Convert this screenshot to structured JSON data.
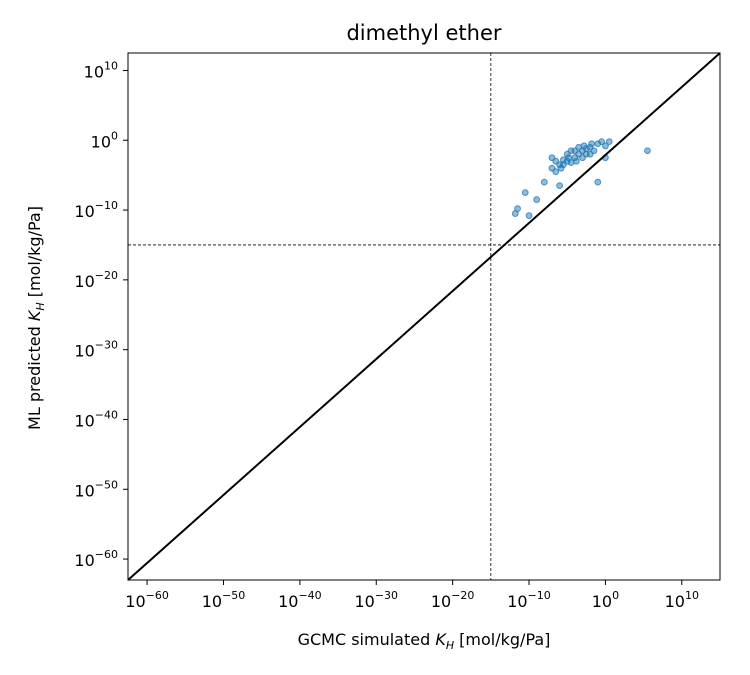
{
  "chart_data": {
    "type": "scatter",
    "title": "dimethyl ether",
    "xlabel": "GCMC simulated K_H [mol/kg/Pa]",
    "xlabel_parts": {
      "before": "GCMC simulated ",
      "symbol": "K",
      "sub": "H",
      "after": " [mol/kg/Pa]"
    },
    "ylabel": "ML predicted K_H [mol/kg/Pa]",
    "ylabel_parts": {
      "before": "ML predicted ",
      "symbol": "K",
      "sub": "H",
      "after": " [mol/kg/Pa]"
    },
    "x_scale": "log",
    "y_scale": "log",
    "xlim_exp": [
      -62.5,
      15
    ],
    "ylim_exp": [
      -63,
      12.5
    ],
    "xticks": [
      {
        "base": "10",
        "exp": "−60",
        "value_exp": -60
      },
      {
        "base": "10",
        "exp": "−50",
        "value_exp": -50
      },
      {
        "base": "10",
        "exp": "−40",
        "value_exp": -40
      },
      {
        "base": "10",
        "exp": "−30",
        "value_exp": -30
      },
      {
        "base": "10",
        "exp": "−20",
        "value_exp": -20
      },
      {
        "base": "10",
        "exp": "−10",
        "value_exp": -10
      },
      {
        "base": "10",
        "exp": "0",
        "value_exp": 0
      },
      {
        "base": "10",
        "exp": "10",
        "value_exp": 10
      }
    ],
    "yticks": [
      {
        "base": "10",
        "exp": "−60",
        "value_exp": -60
      },
      {
        "base": "10",
        "exp": "−50",
        "value_exp": -50
      },
      {
        "base": "10",
        "exp": "−40",
        "value_exp": -40
      },
      {
        "base": "10",
        "exp": "−30",
        "value_exp": -30
      },
      {
        "base": "10",
        "exp": "−20",
        "value_exp": -20
      },
      {
        "base": "10",
        "exp": "−10",
        "value_exp": -10
      },
      {
        "base": "10",
        "exp": "0",
        "value_exp": 0
      },
      {
        "base": "10",
        "exp": "10",
        "value_exp": 10
      }
    ],
    "reference_lines": {
      "vertical_x_exp": -15,
      "horizontal_y_exp": -15,
      "style": "dashed"
    },
    "identity_line": true,
    "grid": false,
    "marker_color": "#1f77b4",
    "series": [
      {
        "points_log10": [
          [
            -11.8,
            -10.5
          ],
          [
            -11.5,
            -9.8
          ],
          [
            -10.5,
            -7.5
          ],
          [
            -10.0,
            -10.8
          ],
          [
            -9.0,
            -8.5
          ],
          [
            -8.0,
            -6.0
          ],
          [
            -7.0,
            -2.5
          ],
          [
            -7.0,
            -4.0
          ],
          [
            -6.5,
            -4.5
          ],
          [
            -6.5,
            -3.0
          ],
          [
            -6.0,
            -3.5
          ],
          [
            -6.0,
            -6.5
          ],
          [
            -5.8,
            -4.0
          ],
          [
            -5.5,
            -2.8
          ],
          [
            -5.5,
            -3.5
          ],
          [
            -5.0,
            -3.0
          ],
          [
            -5.0,
            -2.0
          ],
          [
            -4.8,
            -2.5
          ],
          [
            -4.5,
            -3.2
          ],
          [
            -4.5,
            -1.5
          ],
          [
            -4.0,
            -2.5
          ],
          [
            -4.0,
            -1.5
          ],
          [
            -3.8,
            -3.0
          ],
          [
            -3.5,
            -2.0
          ],
          [
            -3.5,
            -1.0
          ],
          [
            -3.0,
            -2.5
          ],
          [
            -3.0,
            -1.5
          ],
          [
            -2.8,
            -0.8
          ],
          [
            -2.5,
            -2.0
          ],
          [
            -2.5,
            -1.2
          ],
          [
            -2.0,
            -1.0
          ],
          [
            -2.0,
            -2.0
          ],
          [
            -1.8,
            -0.5
          ],
          [
            -1.5,
            -1.5
          ],
          [
            -1.0,
            -0.5
          ],
          [
            -1.0,
            -6.0
          ],
          [
            -0.5,
            -0.2
          ],
          [
            0.0,
            -0.8
          ],
          [
            0.0,
            -2.5
          ],
          [
            0.5,
            -0.2
          ],
          [
            5.5,
            -1.5
          ]
        ]
      }
    ]
  }
}
